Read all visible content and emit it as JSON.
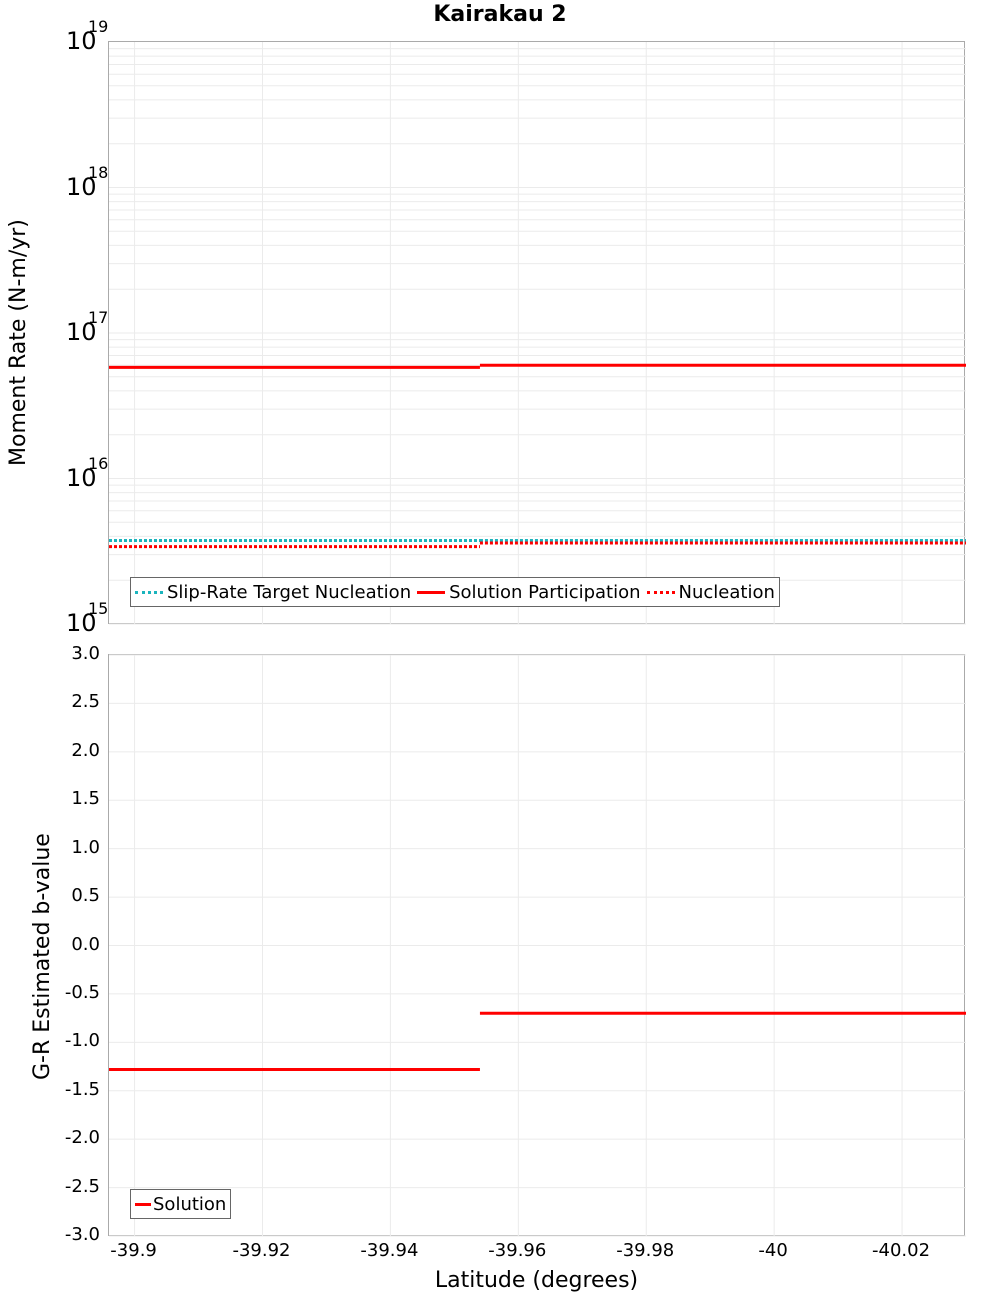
{
  "title": "Kairakau 2",
  "top_panel": {
    "ylabel": "Moment Rate (N-m/yr)",
    "yticks": [
      {
        "base": "10",
        "exp": "19"
      },
      {
        "base": "10",
        "exp": "18"
      },
      {
        "base": "10",
        "exp": "17"
      },
      {
        "base": "10",
        "exp": "16"
      },
      {
        "base": "10",
        "exp": "15"
      }
    ],
    "legend": [
      {
        "label": "Slip-Rate Target Nucleation",
        "style": "dotted",
        "color": "#1ab4bd"
      },
      {
        "label": "Solution Participation",
        "style": "solid",
        "color": "#ff0000"
      },
      {
        "label": "Nucleation",
        "style": "dotted",
        "color": "#ff0000"
      }
    ]
  },
  "bottom_panel": {
    "ylabel": "G-R Estimated b-value",
    "yticks": [
      "3.0",
      "2.5",
      "2.0",
      "1.5",
      "1.0",
      "0.5",
      "0.0",
      "-0.5",
      "-1.0",
      "-1.5",
      "-2.0",
      "-2.5",
      "-3.0"
    ],
    "legend": [
      {
        "label": "Solution",
        "style": "solid",
        "color": "#ff0000"
      }
    ]
  },
  "xaxis": {
    "label": "Latitude (degrees)",
    "ticks": [
      "-39.9",
      "-39.92",
      "-39.94",
      "-39.96",
      "-39.98",
      "-40",
      "-40.02"
    ]
  },
  "chart_data": [
    {
      "type": "line",
      "title": "Kairakau 2",
      "xlabel": "Latitude (degrees)",
      "ylabel": "Moment Rate (N-m/yr)",
      "yscale": "log",
      "ylim": [
        1000000000000000.0,
        1e+19
      ],
      "xlim": [
        -39.896,
        -40.03
      ],
      "grid": true,
      "legend_position": "lower-left",
      "x_bins": [
        [
          -39.896,
          -39.954
        ],
        [
          -39.954,
          -40.03
        ]
      ],
      "series": [
        {
          "name": "Slip-Rate Target Nucleation",
          "style": "dotted",
          "color": "#1ab4bd",
          "values": [
            3750000000000000.0,
            3750000000000000.0
          ]
        },
        {
          "name": "Solution Participation",
          "style": "solid",
          "color": "#ff0000",
          "values": [
            5.8e+16,
            6e+16
          ]
        },
        {
          "name": "Nucleation",
          "style": "dotted",
          "color": "#ff0000",
          "values": [
            3400000000000000.0,
            3600000000000000.0
          ]
        }
      ]
    },
    {
      "type": "line",
      "xlabel": "Latitude (degrees)",
      "ylabel": "G-R Estimated b-value",
      "ylim": [
        -3.0,
        3.0
      ],
      "xlim": [
        -39.896,
        -40.03
      ],
      "grid": true,
      "legend_position": "lower-left",
      "x_bins": [
        [
          -39.896,
          -39.954
        ],
        [
          -39.954,
          -40.03
        ]
      ],
      "series": [
        {
          "name": "Solution",
          "style": "solid",
          "color": "#ff0000",
          "values": [
            -1.28,
            -0.7
          ]
        }
      ]
    }
  ]
}
